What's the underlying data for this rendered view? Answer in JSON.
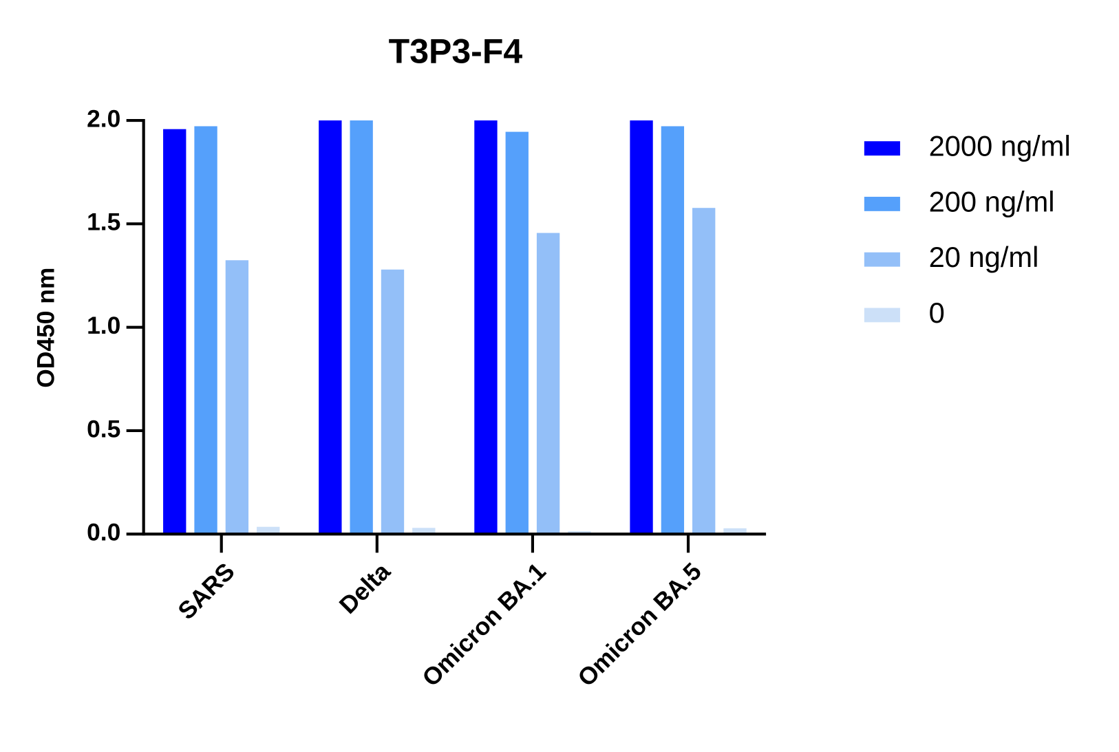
{
  "chart_data": {
    "type": "bar",
    "title": "T3P3-F4",
    "y_label": "OD450 nm",
    "categories": [
      "SARS",
      "Delta",
      "Omicron BA.1",
      "Omicron BA.5"
    ],
    "series": [
      {
        "name": "2000 ng/ml",
        "color": "#0000ff",
        "values": [
          1.958,
          2.0,
          2.0,
          2.0
        ]
      },
      {
        "name": "200 ng/ml",
        "color": "#55a0fb",
        "values": [
          1.972,
          2.0,
          1.945,
          1.972
        ]
      },
      {
        "name": "20 ng/ml",
        "color": "#93bff8",
        "values": [
          1.324,
          1.279,
          1.456,
          1.577
        ]
      },
      {
        "name": "0",
        "color": "#cce0f8",
        "values": [
          0.035,
          0.03,
          0.014,
          0.028
        ]
      }
    ],
    "ylim": [
      0,
      2
    ],
    "yticks": [
      {
        "value": 0,
        "label": "0.0"
      },
      0.5,
      {
        "value": 1,
        "label": "1.0"
      },
      1.5,
      {
        "value": 2,
        "label": "2.0"
      }
    ],
    "legend": "right"
  }
}
